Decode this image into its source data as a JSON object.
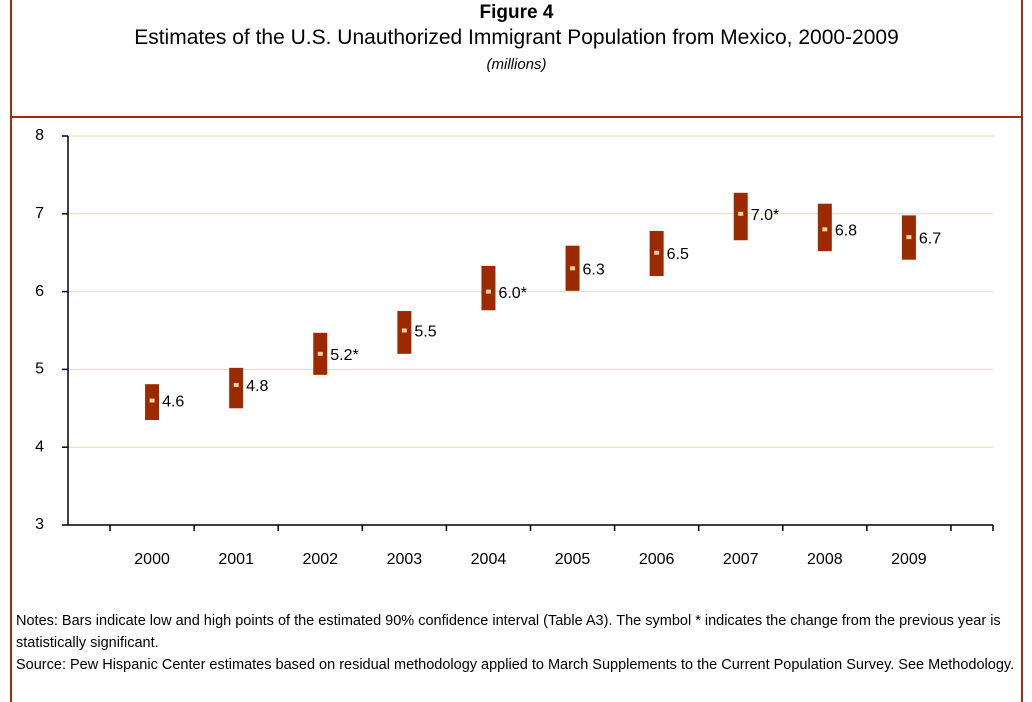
{
  "chart_data": {
    "type": "interval",
    "title": "Figure 4",
    "subtitle": "Estimates of the U.S. Unauthorized Immigrant Population from Mexico, 2000-2009",
    "unit": "(millions)",
    "categories": [
      "2000",
      "2001",
      "2002",
      "2003",
      "2004",
      "2005",
      "2006",
      "2007",
      "2008",
      "2009"
    ],
    "series": [
      {
        "color": "#9c2a00",
        "values": [
          4.6,
          4.8,
          5.2,
          5.5,
          6.0,
          6.3,
          6.5,
          7.0,
          6.8,
          6.7
        ],
        "value_labels": [
          "4.6",
          "4.8",
          "5.2*",
          "5.5",
          "6.0*",
          "6.3",
          "6.5",
          "7.0*",
          "6.8",
          "6.7"
        ],
        "low": [
          4.35,
          4.5,
          4.93,
          5.2,
          5.76,
          6.01,
          6.2,
          6.66,
          6.52,
          6.41
        ],
        "high": [
          4.81,
          5.02,
          5.47,
          5.75,
          6.33,
          6.59,
          6.78,
          7.27,
          7.13,
          6.98
        ]
      }
    ],
    "ylim": [
      3,
      8
    ],
    "yticks": [
      3,
      4,
      5,
      6,
      7,
      8
    ],
    "grid": true,
    "notes": "Notes: Bars indicate low and high points of the estimated 90% confidence interval (Table A3). The symbol * indicates the change from the previous year is statistically significant.",
    "source": "Source: Pew Hispanic Center estimates based on residual methodology applied to March Supplements to the Current Population Survey. See Methodology."
  }
}
